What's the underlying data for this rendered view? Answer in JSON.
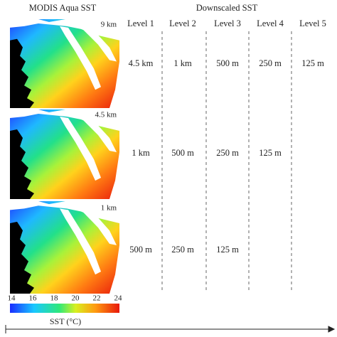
{
  "header": {
    "left": "MODIS Aqua SST",
    "right": "Downscaled SST"
  },
  "levels": [
    "Level 1",
    "Level 2",
    "Level 3",
    "Level 4",
    "Level 5"
  ],
  "images": [
    {
      "label": "9 km"
    },
    {
      "label": "4.5 km"
    },
    {
      "label": "1 km"
    }
  ],
  "table": {
    "rows": [
      [
        "4.5 km",
        "1 km",
        "500 m",
        "250 m",
        "125 m"
      ],
      [
        "1 km",
        "500 m",
        "250 m",
        "125 m"
      ],
      [
        "500 m",
        "250 m",
        "125 m"
      ]
    ]
  },
  "colorbar": {
    "ticks": [
      14,
      16,
      18,
      20,
      22,
      24
    ],
    "label": "SST (°C)"
  }
}
